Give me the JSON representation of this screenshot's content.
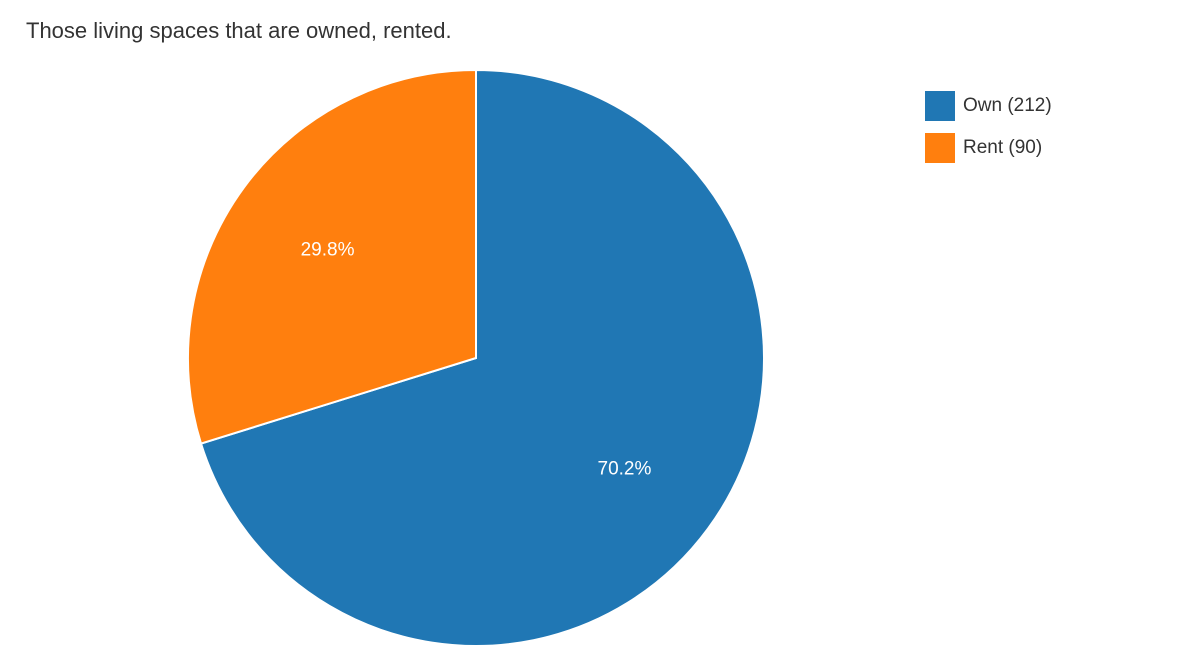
{
  "chart_data": {
    "type": "pie",
    "title": "Those living spaces that are owned, rented.",
    "legend_position": "right",
    "slices": [
      {
        "label": "Own",
        "legend_text": "Own (212)",
        "value": 212,
        "percent_label": "70.2%",
        "color": "#2077b4"
      },
      {
        "label": "Rent",
        "legend_text": "Rent (90)",
        "value": 90,
        "percent_label": "29.8%",
        "color": "#ff7f0e"
      }
    ]
  }
}
